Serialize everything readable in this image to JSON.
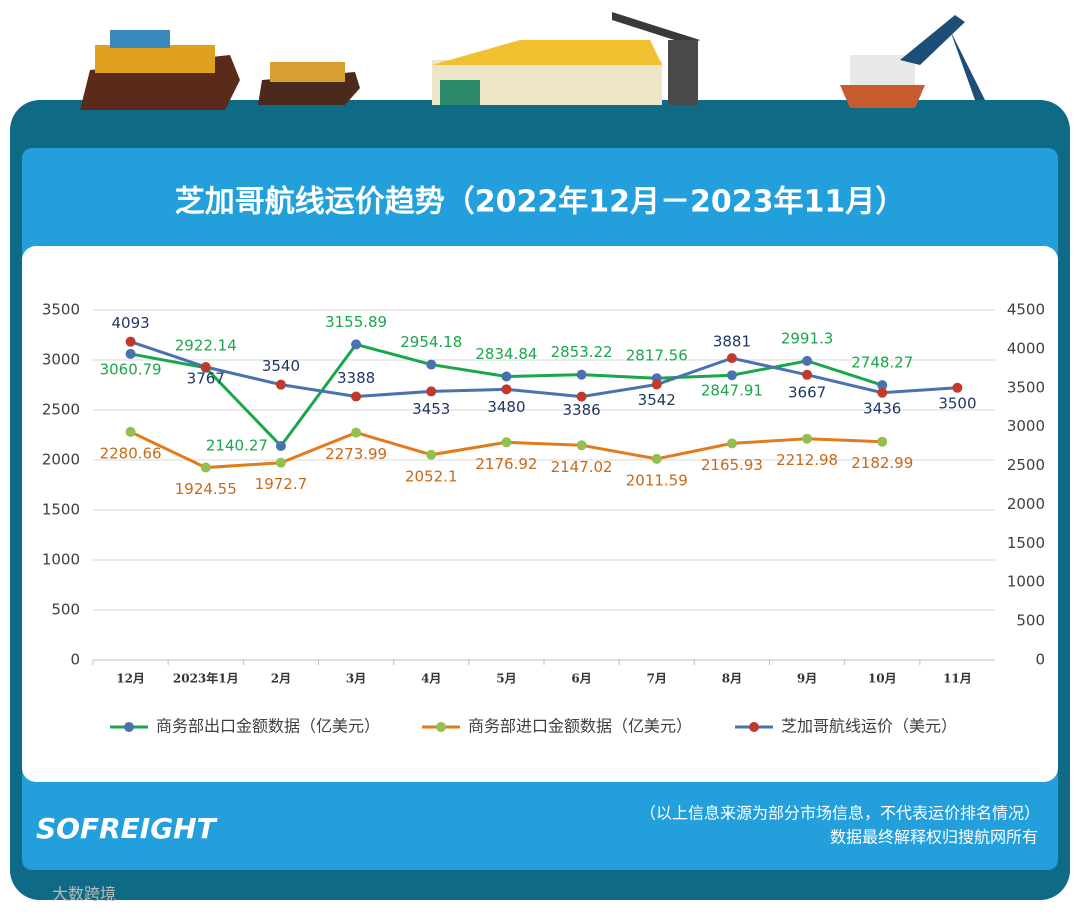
{
  "title": "芝加哥航线运价趋势（2022年12月－2023年11月）",
  "chart_data": {
    "type": "line",
    "categories": [
      "12月",
      "2023年1月",
      "2月",
      "3月",
      "4月",
      "5月",
      "6月",
      "7月",
      "8月",
      "9月",
      "10月",
      "11月"
    ],
    "series": [
      {
        "name": "商务部出口金额数据（亿美元）",
        "color": "#1aa64b",
        "marker_color": "#4a72b0",
        "values": [
          3060.79,
          2922.14,
          2140.27,
          3155.89,
          2954.18,
          2834.84,
          2853.22,
          2817.56,
          2847.91,
          2991.3,
          2748.27,
          null
        ]
      },
      {
        "name": "商务部进口金额数据（亿美元）",
        "color": "#e27b1c",
        "marker_color": "#92c050",
        "values": [
          2280.66,
          1924.55,
          1972.7,
          2273.99,
          2052.1,
          2176.92,
          2147.02,
          2011.59,
          2165.93,
          2212.98,
          2182.99,
          null
        ]
      },
      {
        "name": "芝加哥航线运价（美元）",
        "color": "#4a72b0",
        "marker_color": "#c0392b",
        "axis": "y2",
        "values": [
          4093,
          3767,
          3540,
          3388,
          3453,
          3480,
          3386,
          3542,
          3881,
          3667,
          3436,
          3500
        ]
      }
    ],
    "ylim": [
      0,
      3500
    ],
    "yticks": [
      0,
      500,
      1000,
      1500,
      2000,
      2500,
      3000,
      3500
    ],
    "y2lim": [
      0,
      4500
    ],
    "y2ticks": [
      0,
      500,
      1000,
      1500,
      2000,
      2500,
      3000,
      3500,
      4000,
      4500
    ],
    "legend": "bottom"
  },
  "footer": {
    "note": "（以上信息来源为部分市场信息，不代表运价排名情况）",
    "rights": "数据最终解释权归搜航网所有",
    "logo": "SOFREIGHT",
    "watermark": "大数跨境"
  }
}
